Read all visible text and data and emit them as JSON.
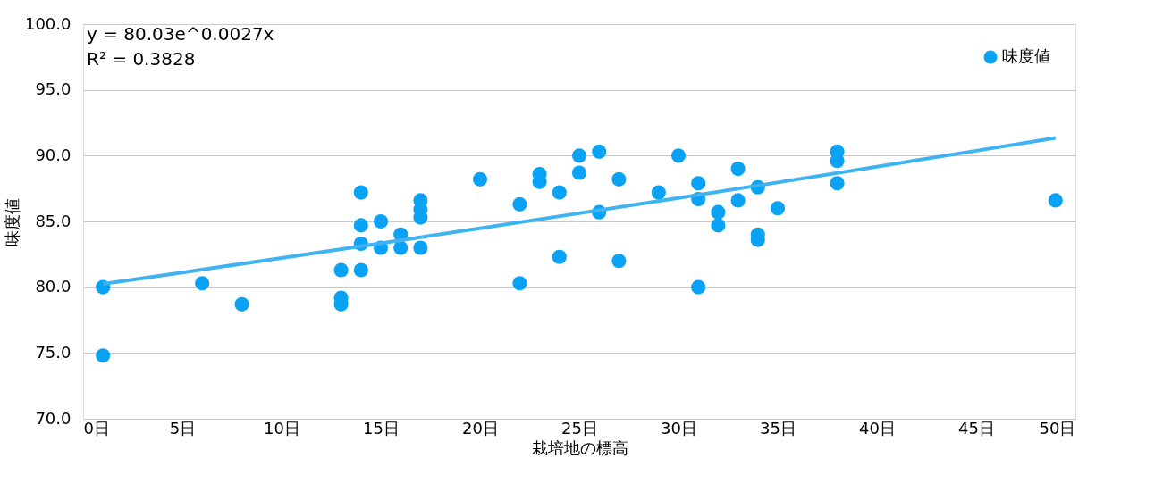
{
  "chart_data": {
    "type": "scatter",
    "xlabel": "栽培地の標高",
    "ylabel": "味度値",
    "xlim": [
      0,
      50
    ],
    "ylim": [
      70,
      100
    ],
    "xticks": [
      {
        "value": 0,
        "label": "0日"
      },
      {
        "value": 5,
        "label": "5日"
      },
      {
        "value": 10,
        "label": "10日"
      },
      {
        "value": 15,
        "label": "15日"
      },
      {
        "value": 20,
        "label": "20日"
      },
      {
        "value": 25,
        "label": "25日"
      },
      {
        "value": 30,
        "label": "30日"
      },
      {
        "value": 35,
        "label": "35日"
      },
      {
        "value": 40,
        "label": "40日"
      },
      {
        "value": 45,
        "label": "45日"
      },
      {
        "value": 50,
        "label": "50日"
      }
    ],
    "yticks": [
      {
        "value": 70,
        "label": "70.0"
      },
      {
        "value": 75,
        "label": "75.0"
      },
      {
        "value": 80,
        "label": "80.0"
      },
      {
        "value": 85,
        "label": "85.0"
      },
      {
        "value": 90,
        "label": "90.0"
      },
      {
        "value": 95,
        "label": "95.0"
      },
      {
        "value": 100,
        "label": "100.0"
      }
    ],
    "grid": "y",
    "legend": "top right",
    "marker": "circle",
    "annotations": [
      "y = 80.03e^0.0027x",
      "R² = 0.3828"
    ],
    "series": [
      {
        "name": "味度値",
        "color": "#0aa2f5",
        "x": [
          1,
          1,
          6,
          8,
          13,
          13,
          13,
          14,
          14,
          14,
          14,
          15,
          15,
          16,
          16,
          17,
          17,
          17,
          17,
          20,
          22,
          22,
          23,
          23,
          24,
          24,
          25,
          25,
          26,
          26,
          27,
          27,
          29,
          30,
          31,
          31,
          31,
          32,
          32,
          33,
          33,
          34,
          34,
          34,
          35,
          38,
          38,
          38,
          49
        ],
        "values": [
          80.0,
          74.8,
          80.3,
          78.7,
          81.3,
          79.2,
          78.7,
          87.2,
          84.7,
          83.3,
          81.3,
          85.0,
          83.0,
          84.0,
          83.0,
          86.6,
          85.9,
          85.3,
          83.0,
          88.2,
          86.3,
          80.3,
          88.6,
          88.0,
          87.2,
          82.3,
          90.0,
          88.7,
          90.3,
          85.7,
          88.2,
          82.0,
          87.2,
          90.0,
          87.9,
          86.7,
          80.0,
          85.7,
          84.7,
          89.0,
          86.6,
          87.6,
          84.0,
          83.6,
          86.0,
          90.3,
          89.6,
          87.9,
          86.6
        ]
      },
      {
        "type": "line",
        "color": "#3fb2f2",
        "line_style": "solid",
        "marker": "none",
        "x": [
          1,
          5,
          10,
          15,
          20,
          25,
          30,
          35,
          40,
          45,
          49
        ],
        "values": [
          80.25,
          81.12,
          82.22,
          83.34,
          84.48,
          85.62,
          86.78,
          87.96,
          89.16,
          90.37,
          91.35
        ]
      }
    ]
  }
}
